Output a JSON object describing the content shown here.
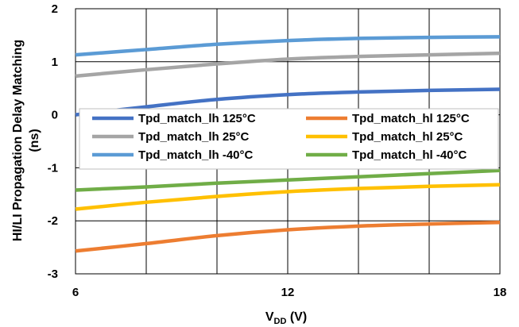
{
  "chart_data": {
    "type": "line",
    "xlabel_main": "V",
    "xlabel_sub": "DD",
    "xlabel_unit": " (V)",
    "ylabel_line1": "HI/LI Propagation Delay Matching",
    "ylabel_line2": "(ns)",
    "xlim": [
      6,
      18
    ],
    "ylim": [
      -3,
      2
    ],
    "xticks": [
      "6",
      "12",
      "18"
    ],
    "yticks": [
      "2",
      "1",
      "0",
      "-1",
      "-2",
      "-3"
    ],
    "grid": true,
    "legend_position": "center",
    "x": [
      6,
      8,
      10,
      12,
      14,
      16,
      18
    ],
    "series": [
      {
        "name": "Tpd_match_lh 125°C",
        "color": "#4472C4",
        "values": [
          0.0,
          0.15,
          0.29,
          0.38,
          0.43,
          0.46,
          0.48
        ]
      },
      {
        "name": "Tpd_match_hl 125°C",
        "color": "#ED7D31",
        "values": [
          -2.57,
          -2.43,
          -2.28,
          -2.17,
          -2.1,
          -2.06,
          -2.03
        ]
      },
      {
        "name": "Tpd_match_lh 25°C",
        "color": "#A5A5A5",
        "values": [
          0.73,
          0.85,
          0.96,
          1.05,
          1.1,
          1.13,
          1.16
        ]
      },
      {
        "name": "Tpd_match_hl 25°C",
        "color": "#FFC000",
        "values": [
          -1.78,
          -1.65,
          -1.54,
          -1.45,
          -1.39,
          -1.35,
          -1.32
        ]
      },
      {
        "name": "Tpd_match_lh -40°C",
        "color": "#5B9BD5",
        "values": [
          1.13,
          1.23,
          1.33,
          1.4,
          1.44,
          1.46,
          1.47
        ]
      },
      {
        "name": "Tpd_match_hl -40°C",
        "color": "#70AD47",
        "values": [
          -1.42,
          -1.36,
          -1.29,
          -1.23,
          -1.17,
          -1.11,
          -1.05
        ]
      }
    ]
  }
}
